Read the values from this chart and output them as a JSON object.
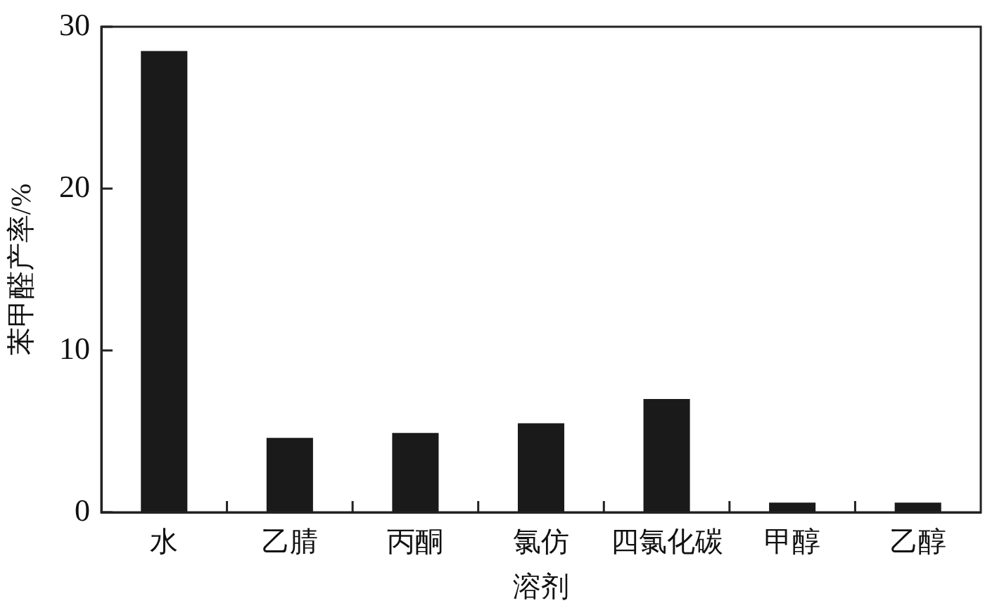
{
  "chart_data": {
    "type": "bar",
    "xlabel": "溶剂",
    "ylabel": "苯甲醛产率/%",
    "categories": [
      "水",
      "乙腈",
      "丙酮",
      "氯仿",
      "四氯化碳",
      "甲醇",
      "乙醇"
    ],
    "values": [
      28.5,
      4.6,
      4.9,
      5.5,
      7.0,
      0.6,
      0.6
    ],
    "color": "#1a1a1a",
    "ylim": [
      0,
      30
    ],
    "yticks": [
      0,
      10,
      20,
      30
    ]
  }
}
